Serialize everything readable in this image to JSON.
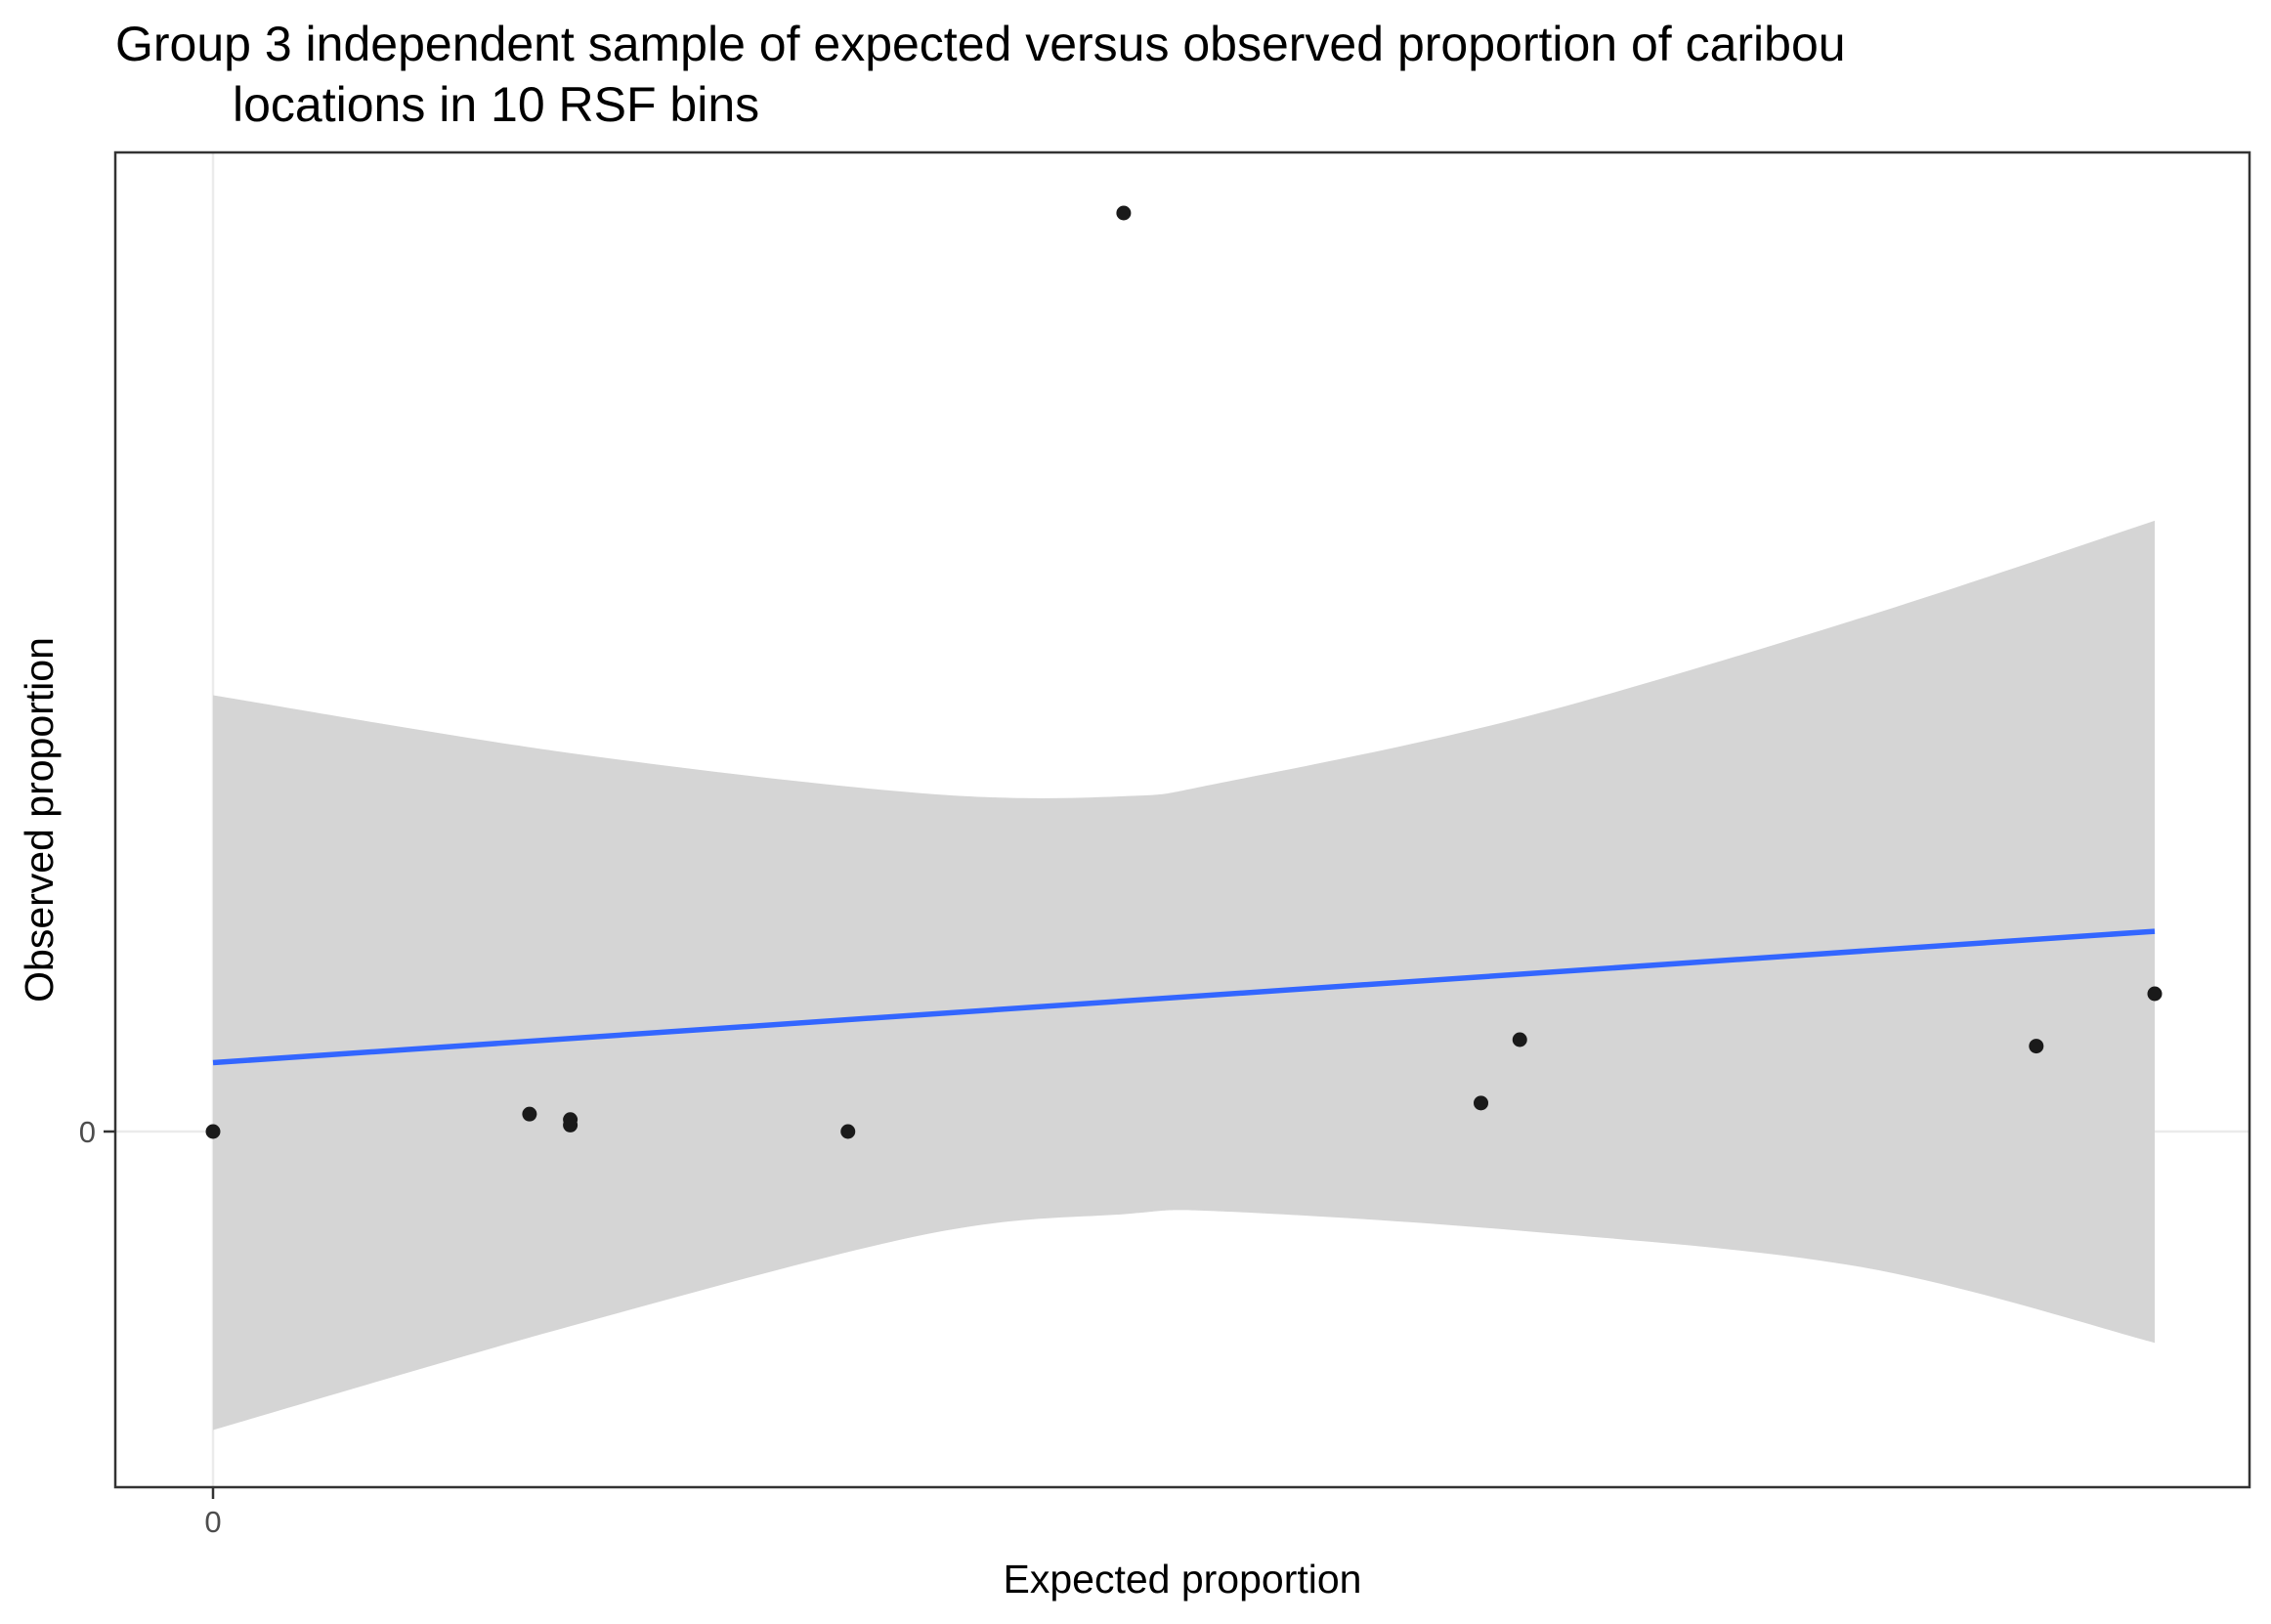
{
  "chart_data": {
    "type": "scatter",
    "title_lines": [
      "Group 3 independent sample of expected versus observed proportion of caribou",
      "locations in 10 RSF bins"
    ],
    "xlabel": "Expected proportion",
    "ylabel": "Observed proportion",
    "x_ticks": [
      {
        "value": 0,
        "label": "0"
      }
    ],
    "y_ticks": [
      {
        "value": 0,
        "label": "0"
      }
    ],
    "xlim": [
      -0.05,
      1.05
    ],
    "ylim": [
      -0.4,
      1.05
    ],
    "grid": true,
    "legend": "none",
    "points": [
      {
        "x": 0.0,
        "y": 0.0
      },
      {
        "x": 0.163,
        "y": 0.019
      },
      {
        "x": 0.184,
        "y": 0.013
      },
      {
        "x": 0.184,
        "y": 0.007
      },
      {
        "x": 0.327,
        "y": 0.0
      },
      {
        "x": 0.469,
        "y": 1.0
      },
      {
        "x": 0.653,
        "y": 0.031
      },
      {
        "x": 0.673,
        "y": 0.1
      },
      {
        "x": 0.939,
        "y": 0.093
      },
      {
        "x": 1.0,
        "y": 0.15
      }
    ],
    "fit_line": {
      "x": [
        0.0,
        1.0
      ],
      "y": [
        0.075,
        0.218
      ]
    },
    "confidence_band": {
      "x": [
        0.0,
        0.184,
        0.367,
        0.469,
        0.52,
        0.673,
        0.85,
        1.0
      ],
      "upper": [
        0.475,
        0.412,
        0.368,
        0.365,
        0.38,
        0.45,
        0.56,
        0.665
      ],
      "lower": [
        -0.325,
        -0.212,
        -0.112,
        -0.09,
        -0.087,
        -0.108,
        -0.148,
        -0.23
      ]
    },
    "colors": {
      "points": "#1a1a1a",
      "fit_line": "#3366ff",
      "band": "#d5d5d5",
      "grid": "#ebebeb",
      "panel_border": "#333333"
    }
  }
}
